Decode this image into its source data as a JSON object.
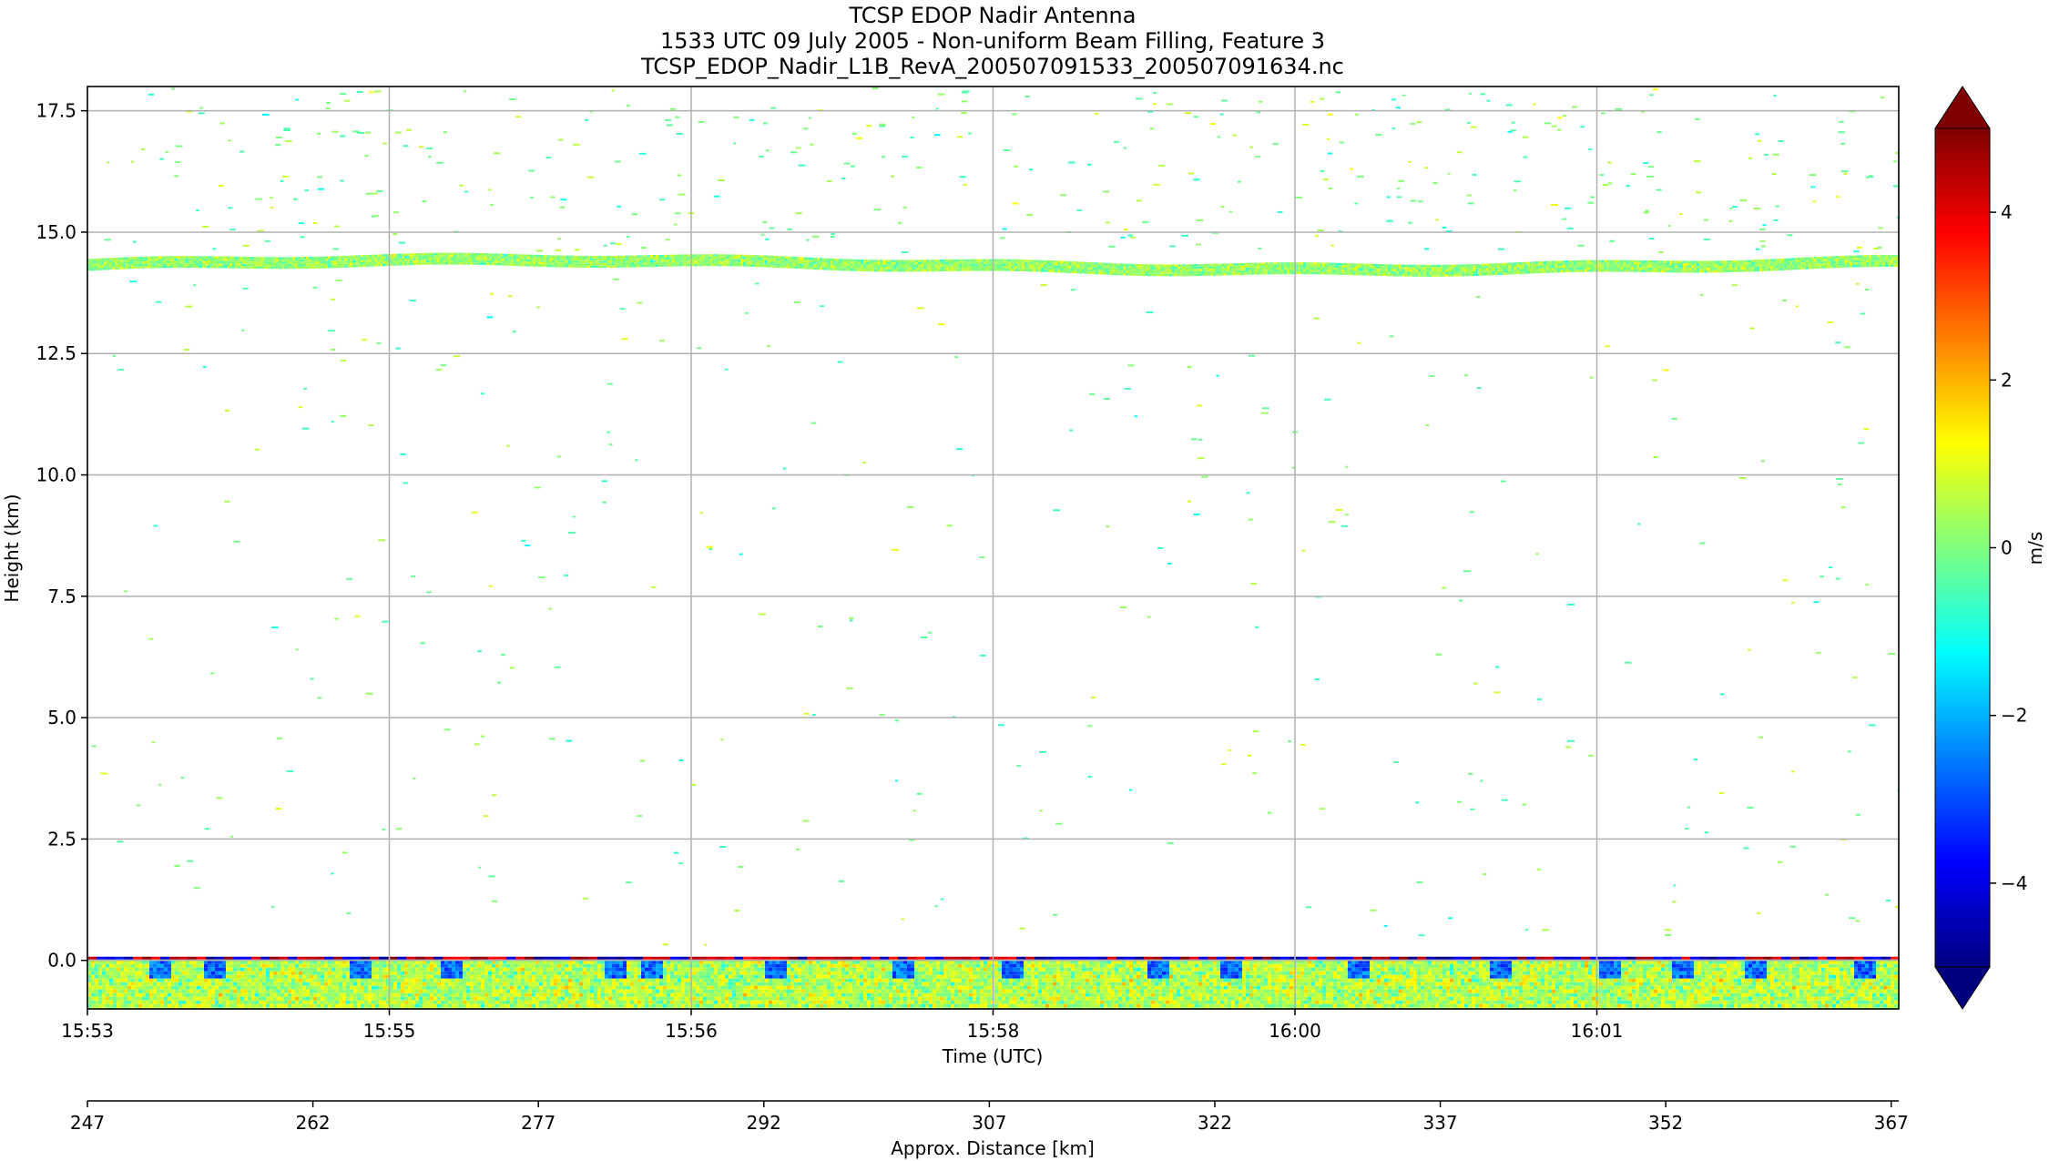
{
  "chart_data": {
    "type": "heatmap",
    "title_lines": [
      "TCSP EDOP Nadir Antenna",
      "1533 UTC 09 July 2005 - Non-uniform Beam Filling, Feature 3",
      "TCSP_EDOP_Nadir_L1B_RevA_200507091533_200507091634.nc"
    ],
    "xlabel": "Time (UTC)",
    "ylabel": "Height (km)",
    "x2label": "Approx. Distance [km]",
    "colorbar_label": "m/s",
    "x_ticks": [
      "15:53",
      "15:55",
      "15:56",
      "15:58",
      "16:00",
      "16:01"
    ],
    "y_ticks": [
      "0.0",
      "2.5",
      "5.0",
      "7.5",
      "10.0",
      "12.5",
      "15.0",
      "17.5"
    ],
    "y_tick_values": [
      0.0,
      2.5,
      5.0,
      7.5,
      10.0,
      12.5,
      15.0,
      17.5
    ],
    "ylim": [
      -1.0,
      18.0
    ],
    "x2_ticks": [
      "247",
      "262",
      "277",
      "292",
      "307",
      "322",
      "337",
      "352",
      "367"
    ],
    "x2_tick_values": [
      247,
      262,
      277,
      292,
      307,
      322,
      337,
      352,
      367
    ],
    "x2lim": [
      247,
      367.5
    ],
    "colorbar_ticks": [
      "−4",
      "−2",
      "0",
      "2",
      "4"
    ],
    "colorbar_tick_values": [
      -4,
      -2,
      0,
      2,
      4
    ],
    "clim": [
      -5,
      5
    ],
    "colormap": "jet",
    "colormap_stops": [
      "#00007f",
      "#0000ff",
      "#007fff",
      "#00ffff",
      "#7fff7f",
      "#ffff00",
      "#ff7f00",
      "#ff0000",
      "#7f0000"
    ],
    "extend": "both",
    "grid": true,
    "features": {
      "upper_layer_height_km": 14.35,
      "surface_height_km": 0.0
    }
  }
}
